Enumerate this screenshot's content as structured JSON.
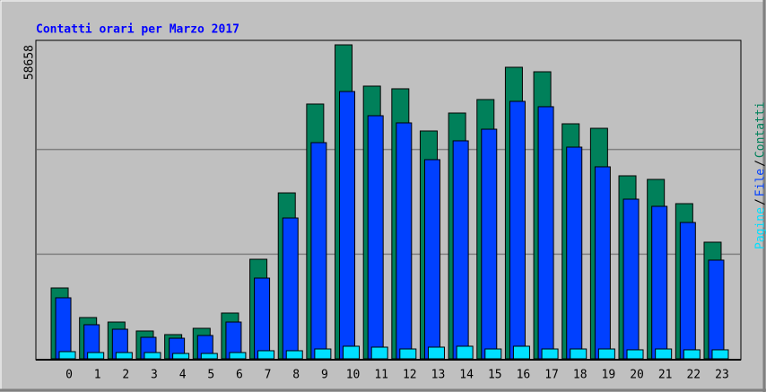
{
  "chart_data": {
    "type": "bar",
    "title": "Contatti orari per Marzo 2017",
    "categories": [
      "0",
      "1",
      "2",
      "3",
      "4",
      "5",
      "6",
      "7",
      "8",
      "9",
      "10",
      "11",
      "12",
      "13",
      "14",
      "15",
      "16",
      "17",
      "18",
      "19",
      "20",
      "21",
      "22",
      "23"
    ],
    "series": [
      {
        "name": "Contatti",
        "color": "#00805a",
        "values": [
          13240,
          7710,
          6870,
          5200,
          4525,
          5700,
          8550,
          18600,
          31000,
          47600,
          58658,
          50950,
          50450,
          42570,
          45920,
          48440,
          54470,
          53630,
          43910,
          43070,
          34190,
          33520,
          28990,
          21790
        ]
      },
      {
        "name": "File",
        "color": "#0040ff",
        "values": [
          11400,
          6370,
          5530,
          4020,
          3850,
          4360,
          6870,
          15080,
          26310,
          40390,
          49940,
          45420,
          44080,
          37210,
          40730,
          42900,
          48100,
          47100,
          39550,
          35870,
          29830,
          28490,
          25470,
          18440
        ]
      },
      {
        "name": "Pagine",
        "color": "#00e0ff",
        "values": [
          1340,
          1170,
          1170,
          1170,
          1000,
          1000,
          1170,
          1510,
          1510,
          1840,
          2350,
          2180,
          1840,
          2180,
          2350,
          1840,
          2350,
          1840,
          1840,
          1840,
          1680,
          1840,
          1680,
          1680
        ]
      }
    ],
    "legend_separator": "/",
    "ylim": [
      0,
      58658
    ],
    "yticks": [
      {
        "value": 19553,
        "label": null
      },
      {
        "value": 39105,
        "label": null
      },
      58658
    ],
    "grid": true
  }
}
